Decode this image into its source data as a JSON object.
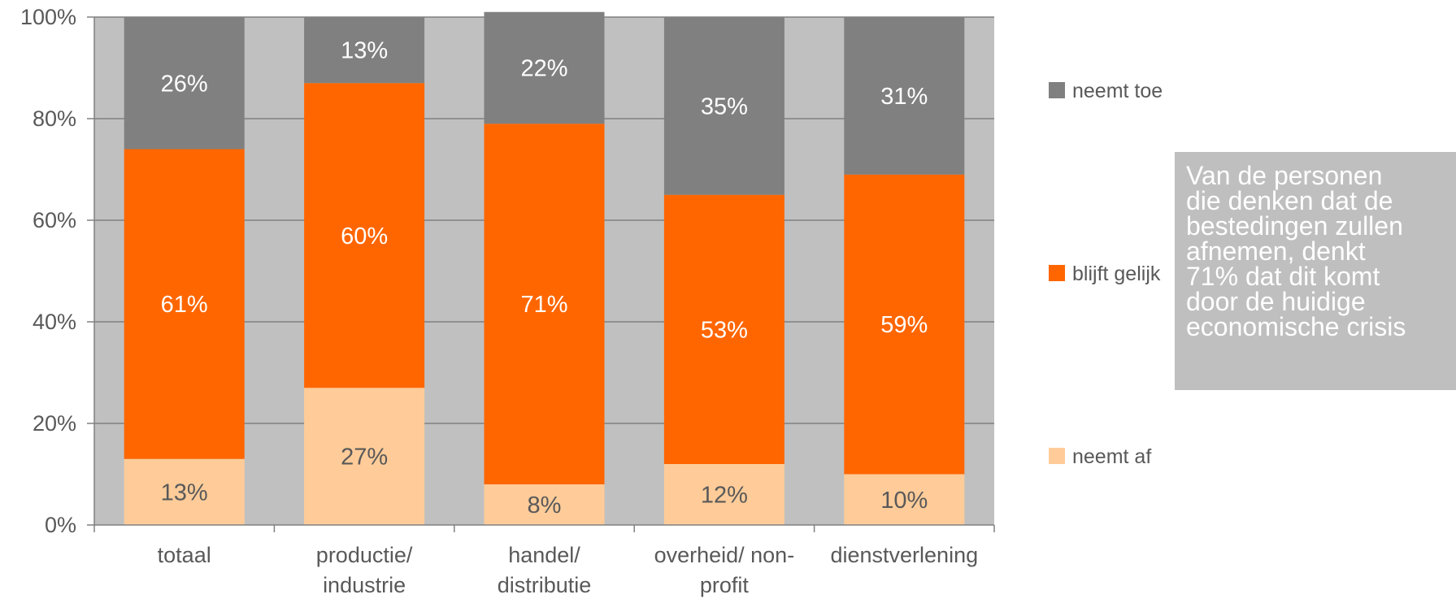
{
  "chart_data": {
    "type": "bar",
    "stacked": true,
    "categories": [
      [
        "totaal"
      ],
      [
        "productie/",
        "industrie"
      ],
      [
        "handel/",
        "distributie"
      ],
      [
        "overheid/ non-",
        "profit"
      ],
      [
        "dienstverlening"
      ]
    ],
    "series": [
      {
        "name": "neemt af",
        "values": [
          13,
          27,
          8,
          12,
          10
        ],
        "labels": [
          "13%",
          "27%",
          "8%",
          "12%",
          "10%"
        ],
        "color": "#ffcc99",
        "label_color": "#595959"
      },
      {
        "name": "blijft gelijk",
        "values": [
          61,
          60,
          71,
          53,
          59
        ],
        "labels": [
          "61%",
          "60%",
          "71%",
          "53%",
          "59%"
        ],
        "color": "#ff6600",
        "label_color": "#ffffff"
      },
      {
        "name": "neemt toe",
        "values": [
          26,
          13,
          22,
          35,
          31
        ],
        "labels": [
          "26%",
          "13%",
          "22%",
          "35%",
          "31%"
        ],
        "color": "#808080",
        "label_color": "#ffffff"
      }
    ],
    "legend_order": [
      2,
      1,
      0
    ],
    "y_ticks": [
      "0%",
      "20%",
      "40%",
      "60%",
      "80%",
      "100%"
    ],
    "ylim": [
      0,
      100
    ],
    "grid": true,
    "plot_background": "#c0c0c0",
    "legend_position": "right"
  },
  "callout": {
    "lines": [
      "Van de personen",
      "die denken dat de",
      "bestedingen zullen",
      "afnemen, denkt",
      "71% dat dit komt",
      "door de huidige",
      "economische crisis"
    ]
  }
}
